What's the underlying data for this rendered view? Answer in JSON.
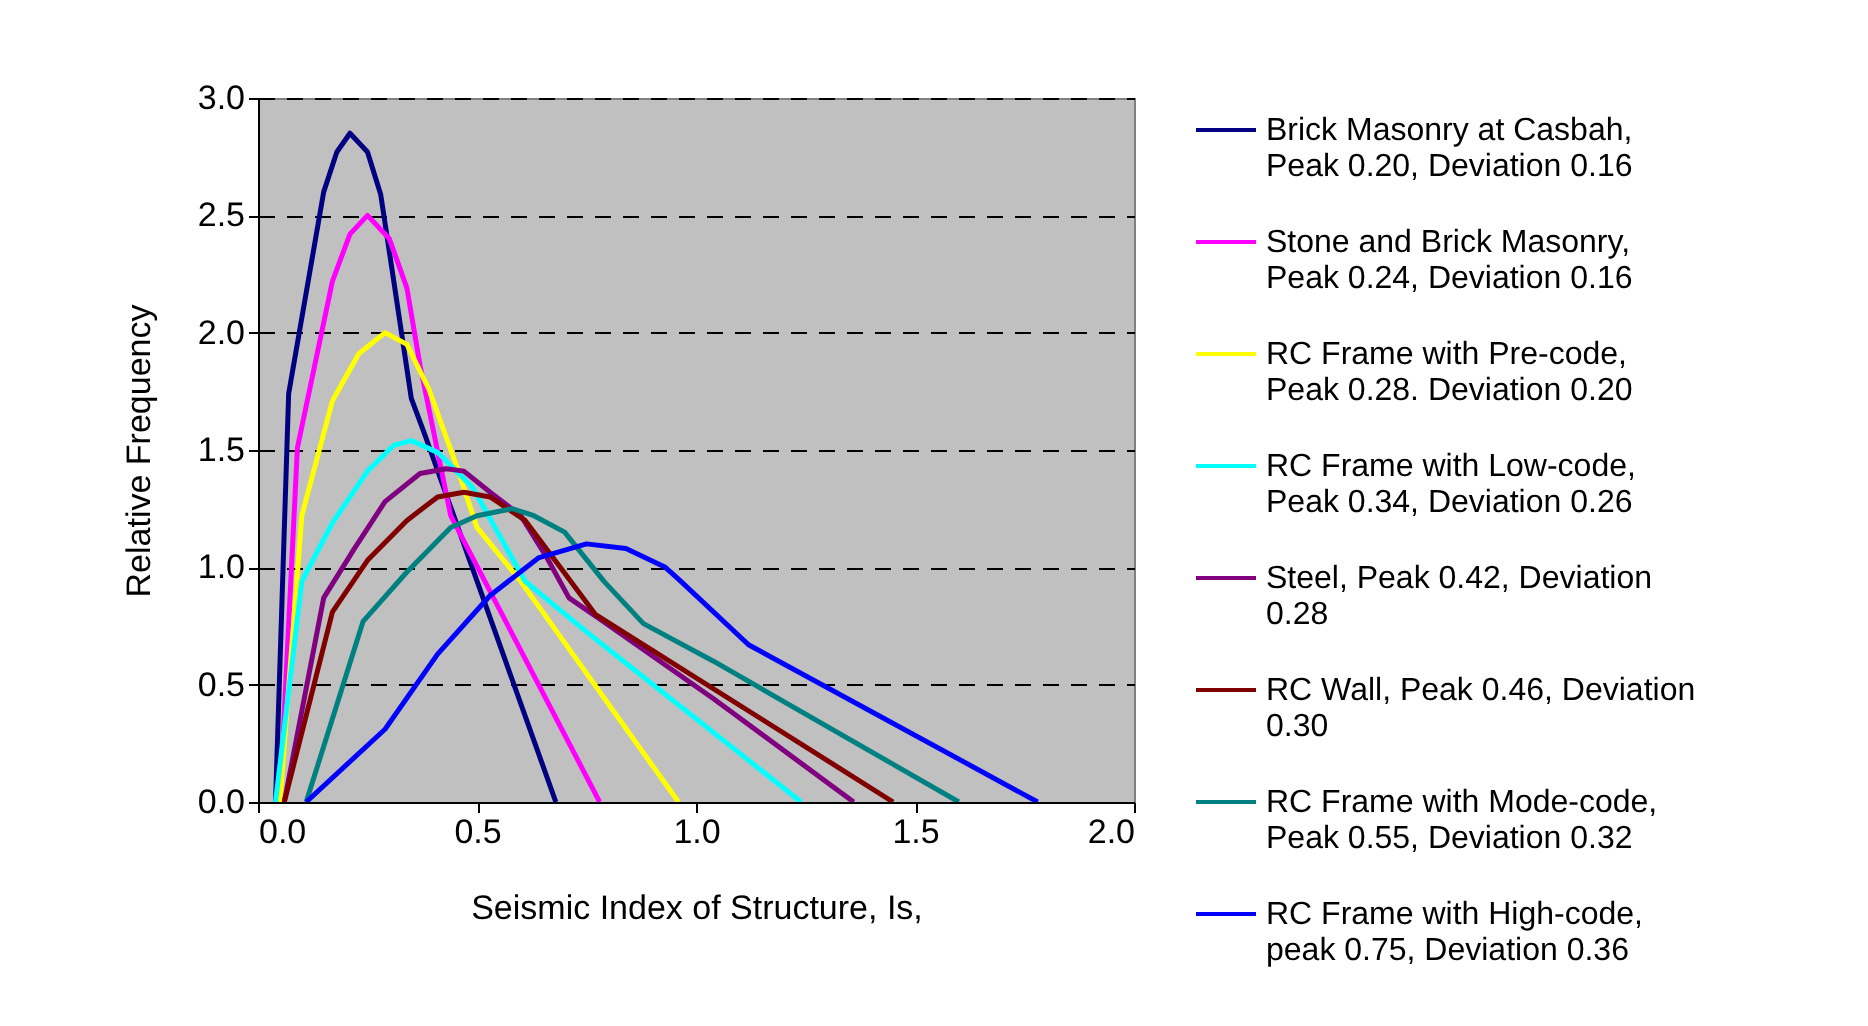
{
  "chart_data": {
    "type": "line",
    "xlabel": "Seismic Index of Structure, Is,",
    "ylabel": "Relative Frequency",
    "xlim": [
      0,
      2
    ],
    "ylim": [
      0,
      3
    ],
    "xticks": [
      {
        "value": 0,
        "label": "0.0"
      },
      {
        "value": 0.5,
        "label": "0.5"
      },
      {
        "value": 1,
        "label": "1.0"
      },
      {
        "value": 1.5,
        "label": "1.5"
      },
      {
        "value": 2,
        "label": "2.0"
      }
    ],
    "yticks": [
      {
        "value": 0,
        "label": "0.0"
      },
      {
        "value": 0.5,
        "label": "0.5"
      },
      {
        "value": 1,
        "label": "1.0"
      },
      {
        "value": 1.5,
        "label": "1.5"
      },
      {
        "value": 2,
        "label": "2.0"
      },
      {
        "value": 2.5,
        "label": "2.5"
      },
      {
        "value": 3,
        "label": "3.0"
      }
    ],
    "grid": "y",
    "legend": "right",
    "marker": "none",
    "line_style": "solid",
    "series": [
      {
        "name": "Brick Masonry at Casbah, Peak 0.20, Deviation 0.16",
        "color": "#000080",
        "x": [
          0.04,
          0.07,
          0.15,
          0.18,
          0.21,
          0.25,
          0.28,
          0.31,
          0.35,
          0.38,
          0.68
        ],
        "values": [
          0,
          1.74,
          2.6,
          2.77,
          2.85,
          2.77,
          2.59,
          2.22,
          1.72,
          1.57,
          0
        ]
      },
      {
        "name": "Stone and Brick Masonry, Peak 0.24, Deviation 0.16",
        "color": "#ff00ff",
        "x": [
          0.05,
          0.09,
          0.17,
          0.21,
          0.25,
          0.3,
          0.34,
          0.37,
          0.44,
          0.78
        ],
        "values": [
          0,
          1.51,
          2.22,
          2.42,
          2.5,
          2.4,
          2.19,
          1.86,
          1.22,
          0
        ]
      },
      {
        "name": "RC Frame with Pre-code, Peak 0.28. Deviation 0.20",
        "color": "#ffff00",
        "x": [
          0.05,
          0.1,
          0.17,
          0.23,
          0.29,
          0.34,
          0.39,
          0.45,
          0.5,
          0.6,
          0.96
        ],
        "values": [
          0,
          1.22,
          1.71,
          1.91,
          2.0,
          1.95,
          1.76,
          1.45,
          1.17,
          0.94,
          0
        ]
      },
      {
        "name": "RC Frame with Low-code, Peak 0.34, Deviation 0.26",
        "color": "#00ffff",
        "x": [
          0.04,
          0.1,
          0.17,
          0.25,
          0.31,
          0.35,
          0.41,
          0.49,
          0.61,
          0.76,
          1.24
        ],
        "values": [
          0,
          0.94,
          1.19,
          1.41,
          1.52,
          1.54,
          1.49,
          1.34,
          0.94,
          0.71,
          0
        ]
      },
      {
        "name": "Steel, Peak 0.42, Deviation 0.28",
        "color": "#800080",
        "x": [
          0.06,
          0.15,
          0.22,
          0.29,
          0.37,
          0.43,
          0.47,
          0.53,
          0.6,
          0.66,
          0.71,
          0.78,
          1.04,
          1.36
        ],
        "values": [
          0,
          0.87,
          1.08,
          1.28,
          1.4,
          1.42,
          1.41,
          1.32,
          1.22,
          1.04,
          0.87,
          0.78,
          0.44,
          0
        ]
      },
      {
        "name": "RC Wall, Peak 0.46, Deviation 0.30",
        "color": "#800000",
        "x": [
          0.06,
          0.17,
          0.25,
          0.34,
          0.41,
          0.47,
          0.53,
          0.61,
          0.69,
          0.77,
          1.45
        ],
        "values": [
          0,
          0.81,
          1.03,
          1.2,
          1.3,
          1.32,
          1.3,
          1.2,
          1.0,
          0.8,
          0
        ]
      },
      {
        "name": "RC Frame with Mode-code, Peak 0.55, Deviation 0.32",
        "color": "#008080",
        "x": [
          0.11,
          0.24,
          0.34,
          0.44,
          0.5,
          0.58,
          0.63,
          0.7,
          0.79,
          0.88,
          1.04,
          1.6
        ],
        "values": [
          0,
          0.77,
          0.98,
          1.17,
          1.22,
          1.25,
          1.22,
          1.15,
          0.94,
          0.76,
          0.6,
          0
        ]
      },
      {
        "name": "RC Frame with High-code, peak 0.75, Deviation 0.36",
        "color": "#0000ff",
        "x": [
          0.11,
          0.29,
          0.41,
          0.53,
          0.64,
          0.75,
          0.84,
          0.93,
          0.96,
          1.12,
          1.78
        ],
        "values": [
          0,
          0.31,
          0.63,
          0.88,
          1.04,
          1.1,
          1.08,
          1.0,
          0.95,
          0.67,
          0
        ]
      }
    ]
  }
}
